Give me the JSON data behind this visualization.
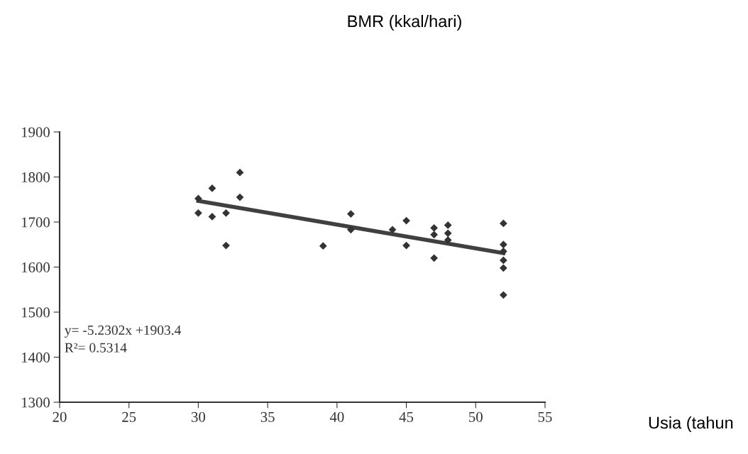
{
  "chart_data": {
    "type": "scatter",
    "annotations": [
      "y= -5.2302x +1903.4",
      "R²= 0.5314",
      "BMR (kkal/hari)",
      "Usia (tahun"
    ],
    "xlim": [
      20,
      55
    ],
    "xticks": [
      20,
      25,
      30,
      35,
      40,
      45,
      50,
      55
    ],
    "ylim": [
      1300,
      1900
    ],
    "yticks": [
      1300,
      1400,
      1500,
      1600,
      1700,
      1800,
      1900
    ],
    "grid": false,
    "legend": false,
    "marker": "diamond",
    "series": [
      {
        "color": "#333333",
        "x": [
          30,
          30,
          31,
          31,
          32,
          32,
          33,
          33,
          39,
          41,
          41,
          44,
          45,
          45,
          47,
          47,
          47,
          48,
          48,
          48,
          52,
          52,
          52,
          52,
          52,
          52
        ],
        "values": [
          1752,
          1720,
          1775,
          1712,
          1720,
          1648,
          1810,
          1755,
          1647,
          1718,
          1683,
          1683,
          1703,
          1648,
          1687,
          1672,
          1620,
          1693,
          1675,
          1660,
          1697,
          1650,
          1635,
          1615,
          1598,
          1538
        ]
      },
      {
        "type": "line",
        "color": "#404040",
        "line_style": "solid",
        "marker": "none",
        "x": [
          30,
          52
        ],
        "values": [
          1747,
          1631
        ]
      }
    ]
  }
}
